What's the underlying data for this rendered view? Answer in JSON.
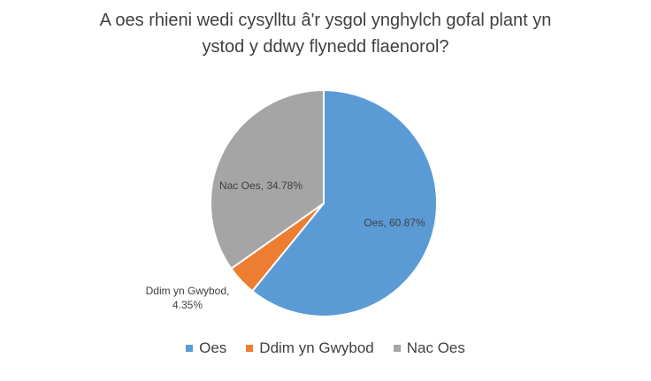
{
  "chart_data": {
    "type": "pie",
    "title_lines": [
      "A oes rhieni wedi cysylltu â'r ysgol ynghylch gofal plant yn",
      "ystod y ddwy flynedd flaenorol?"
    ],
    "categories": [
      "Oes",
      "Ddim yn Gwybod",
      "Nac Oes"
    ],
    "values": [
      60.87,
      4.35,
      34.78
    ],
    "colors": [
      "#5B9BD5",
      "#ED7D31",
      "#A5A5A5"
    ],
    "data_labels": [
      "Oes, 60.87%",
      "Ddim yn Gwybod, 4.35%",
      "Nac Oes, 34.78%"
    ],
    "data_label_lines": [
      [
        "Oes, 60.87%"
      ],
      [
        "Ddim yn Gwybod,",
        "4.35%"
      ],
      [
        "Nac Oes, 34.78%"
      ]
    ],
    "legend_position": "bottom",
    "start_angle": "12 o'clock",
    "direction": "clockwise"
  }
}
